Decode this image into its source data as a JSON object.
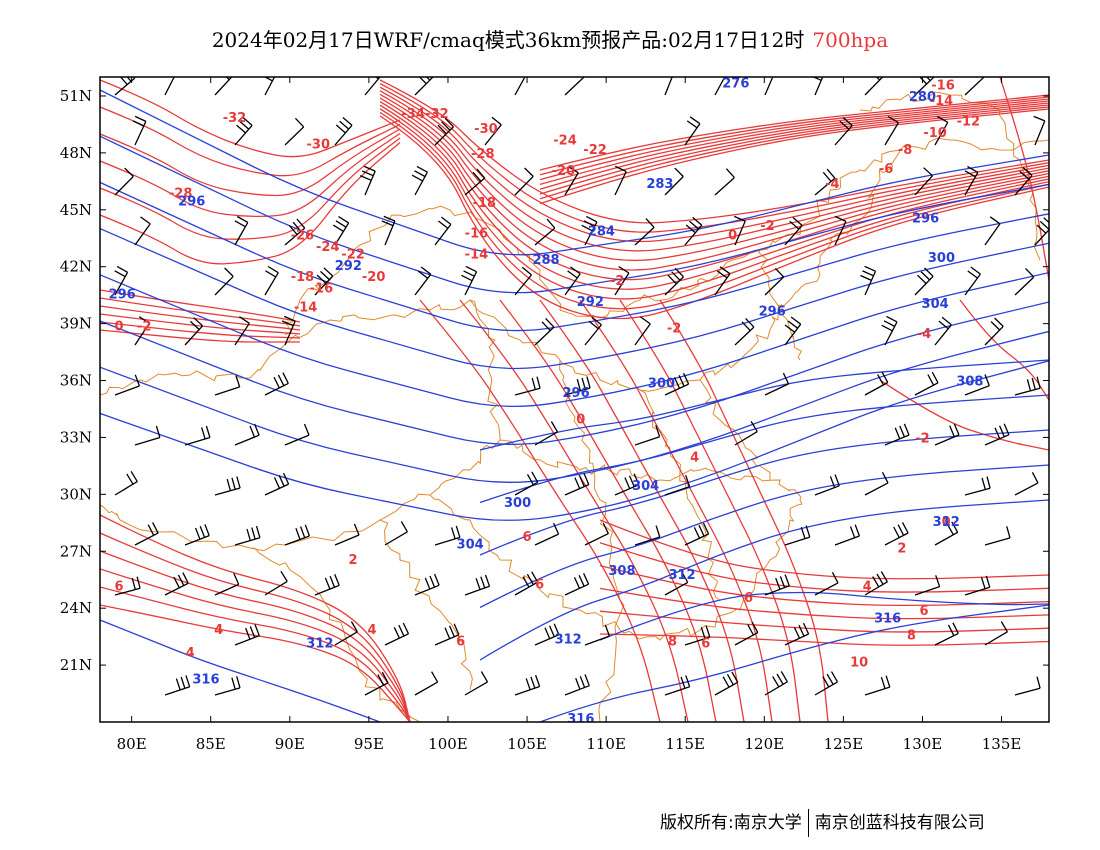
{
  "title": {
    "main": "2024年02月17日WRF/cmaq模式36km预报产品:02月17日12时",
    "level": "700hpa"
  },
  "footer": {
    "copyright": "版权所有:南京大学",
    "company": "南京创蓝科技有限公司"
  },
  "colors": {
    "temperature": "#e83a3a",
    "height": "#2840d8",
    "border": "#e08a2c",
    "barb": "#000000"
  },
  "chart_data": {
    "type": "map",
    "xlim": [
      78,
      138
    ],
    "ylim": [
      18,
      52
    ],
    "lon_ticks": [
      {
        "v": 80,
        "label": "80E"
      },
      {
        "v": 85,
        "label": "85E"
      },
      {
        "v": 90,
        "label": "90E"
      },
      {
        "v": 95,
        "label": "95E"
      },
      {
        "v": 100,
        "label": "100E"
      },
      {
        "v": 105,
        "label": "105E"
      },
      {
        "v": 110,
        "label": "110E"
      },
      {
        "v": 115,
        "label": "115E"
      },
      {
        "v": 120,
        "label": "120E"
      },
      {
        "v": 125,
        "label": "125E"
      },
      {
        "v": 130,
        "label": "130E"
      },
      {
        "v": 135,
        "label": "135E"
      }
    ],
    "lat_ticks": [
      {
        "v": 21,
        "label": "21N"
      },
      {
        "v": 24,
        "label": "24N"
      },
      {
        "v": 27,
        "label": "27N"
      },
      {
        "v": 30,
        "label": "30N"
      },
      {
        "v": 33,
        "label": "33N"
      },
      {
        "v": 36,
        "label": "36N"
      },
      {
        "v": 39,
        "label": "39N"
      },
      {
        "v": 42,
        "label": "42N"
      },
      {
        "v": 45,
        "label": "45N"
      },
      {
        "v": 48,
        "label": "48N"
      },
      {
        "v": 51,
        "label": "51N"
      }
    ],
    "temperature_labels": [
      {
        "text": "-34",
        "lon": 97.8,
        "lat": 50.1
      },
      {
        "text": "-32",
        "lon": 99.3,
        "lat": 50.1
      },
      {
        "text": "-32",
        "lon": 86.5,
        "lat": 49.9
      },
      {
        "text": "-30",
        "lon": 91.8,
        "lat": 48.5
      },
      {
        "text": "-30",
        "lon": 102.4,
        "lat": 49.3
      },
      {
        "text": "-28",
        "lon": 102.2,
        "lat": 48.0
      },
      {
        "text": "-28",
        "lon": 83.1,
        "lat": 45.9
      },
      {
        "text": "-26",
        "lon": 90.8,
        "lat": 43.7
      },
      {
        "text": "-24",
        "lon": 92.4,
        "lat": 43.1
      },
      {
        "text": "-22",
        "lon": 94.0,
        "lat": 42.7
      },
      {
        "text": "-20",
        "lon": 95.3,
        "lat": 41.5
      },
      {
        "text": "-18",
        "lon": 90.8,
        "lat": 41.5
      },
      {
        "text": "-16",
        "lon": 92.0,
        "lat": 40.9
      },
      {
        "text": "-14",
        "lon": 91.0,
        "lat": 39.9
      },
      {
        "text": "-18",
        "lon": 102.3,
        "lat": 45.4
      },
      {
        "text": "-16",
        "lon": 101.8,
        "lat": 43.8
      },
      {
        "text": "-14",
        "lon": 101.8,
        "lat": 42.7
      },
      {
        "text": "-24",
        "lon": 107.4,
        "lat": 48.7
      },
      {
        "text": "-22",
        "lon": 109.3,
        "lat": 48.2
      },
      {
        "text": "-20",
        "lon": 107.3,
        "lat": 47.1
      },
      {
        "text": "-2",
        "lon": 110.7,
        "lat": 41.3
      },
      {
        "text": "-2",
        "lon": 80.8,
        "lat": 38.9
      },
      {
        "text": "0",
        "lon": 79.2,
        "lat": 38.9
      },
      {
        "text": "0",
        "lon": 118.0,
        "lat": 43.7
      },
      {
        "text": "-2",
        "lon": 120.2,
        "lat": 44.2
      },
      {
        "text": "-2",
        "lon": 114.3,
        "lat": 38.8
      },
      {
        "text": "-4",
        "lon": 124.3,
        "lat": 46.4
      },
      {
        "text": "-6",
        "lon": 127.7,
        "lat": 47.2
      },
      {
        "text": "-8",
        "lon": 128.9,
        "lat": 48.2
      },
      {
        "text": "-10",
        "lon": 130.8,
        "lat": 49.1
      },
      {
        "text": "-12",
        "lon": 132.9,
        "lat": 49.7
      },
      {
        "text": "-14",
        "lon": 131.2,
        "lat": 50.8
      },
      {
        "text": "-16",
        "lon": 131.3,
        "lat": 51.6
      },
      {
        "text": "-4",
        "lon": 130.1,
        "lat": 38.5
      },
      {
        "text": "-2",
        "lon": 130.0,
        "lat": 33.0
      },
      {
        "text": "0",
        "lon": 108.4,
        "lat": 34.0
      },
      {
        "text": "4",
        "lon": 115.6,
        "lat": 32.0
      },
      {
        "text": "6",
        "lon": 105.0,
        "lat": 27.8
      },
      {
        "text": "6",
        "lon": 105.8,
        "lat": 25.3
      },
      {
        "text": "2",
        "lon": 94.0,
        "lat": 26.6
      },
      {
        "text": "4",
        "lon": 95.2,
        "lat": 22.9
      },
      {
        "text": "4",
        "lon": 85.5,
        "lat": 22.9
      },
      {
        "text": "4",
        "lon": 83.7,
        "lat": 21.7
      },
      {
        "text": "6",
        "lon": 79.2,
        "lat": 25.2
      },
      {
        "text": "6",
        "lon": 100.8,
        "lat": 22.3
      },
      {
        "text": "6",
        "lon": 119.0,
        "lat": 24.6
      },
      {
        "text": "6",
        "lon": 116.3,
        "lat": 22.2
      },
      {
        "text": "8",
        "lon": 114.2,
        "lat": 22.3
      },
      {
        "text": "10",
        "lon": 126.0,
        "lat": 21.2
      },
      {
        "text": "8",
        "lon": 129.3,
        "lat": 22.6
      },
      {
        "text": "6",
        "lon": 130.1,
        "lat": 23.9
      },
      {
        "text": "4",
        "lon": 126.5,
        "lat": 25.2
      },
      {
        "text": "2",
        "lon": 128.7,
        "lat": 27.2
      },
      {
        "text": "0",
        "lon": 131.5,
        "lat": 28.6
      }
    ],
    "height_labels": [
      {
        "text": "276",
        "lon": 118.2,
        "lat": 51.7
      },
      {
        "text": "280",
        "lon": 130.0,
        "lat": 51.0
      },
      {
        "text": "283",
        "lon": 113.4,
        "lat": 46.4
      },
      {
        "text": "284",
        "lon": 109.7,
        "lat": 43.9
      },
      {
        "text": "288",
        "lon": 106.2,
        "lat": 42.4
      },
      {
        "text": "292",
        "lon": 109.0,
        "lat": 40.2
      },
      {
        "text": "296",
        "lon": 130.2,
        "lat": 44.6
      },
      {
        "text": "300",
        "lon": 131.2,
        "lat": 42.5
      },
      {
        "text": "304",
        "lon": 130.8,
        "lat": 40.1
      },
      {
        "text": "308",
        "lon": 133.0,
        "lat": 36.0
      },
      {
        "text": "296",
        "lon": 120.5,
        "lat": 39.7
      },
      {
        "text": "296",
        "lon": 79.4,
        "lat": 40.6
      },
      {
        "text": "296",
        "lon": 83.8,
        "lat": 45.5
      },
      {
        "text": "292",
        "lon": 93.7,
        "lat": 42.1
      },
      {
        "text": "296",
        "lon": 108.1,
        "lat": 35.4
      },
      {
        "text": "300",
        "lon": 113.5,
        "lat": 35.9
      },
      {
        "text": "304",
        "lon": 112.5,
        "lat": 30.5
      },
      {
        "text": "300",
        "lon": 104.4,
        "lat": 29.6
      },
      {
        "text": "304",
        "lon": 101.4,
        "lat": 27.4
      },
      {
        "text": "308",
        "lon": 111.0,
        "lat": 26.0
      },
      {
        "text": "312",
        "lon": 114.8,
        "lat": 25.8
      },
      {
        "text": "312",
        "lon": 107.6,
        "lat": 22.4
      },
      {
        "text": "312",
        "lon": 131.5,
        "lat": 28.6
      },
      {
        "text": "316",
        "lon": 127.8,
        "lat": 23.5
      },
      {
        "text": "312",
        "lon": 91.9,
        "lat": 22.2
      },
      {
        "text": "316",
        "lon": 84.7,
        "lat": 20.3
      },
      {
        "text": "316",
        "lon": 108.4,
        "lat": 18.2
      }
    ]
  }
}
